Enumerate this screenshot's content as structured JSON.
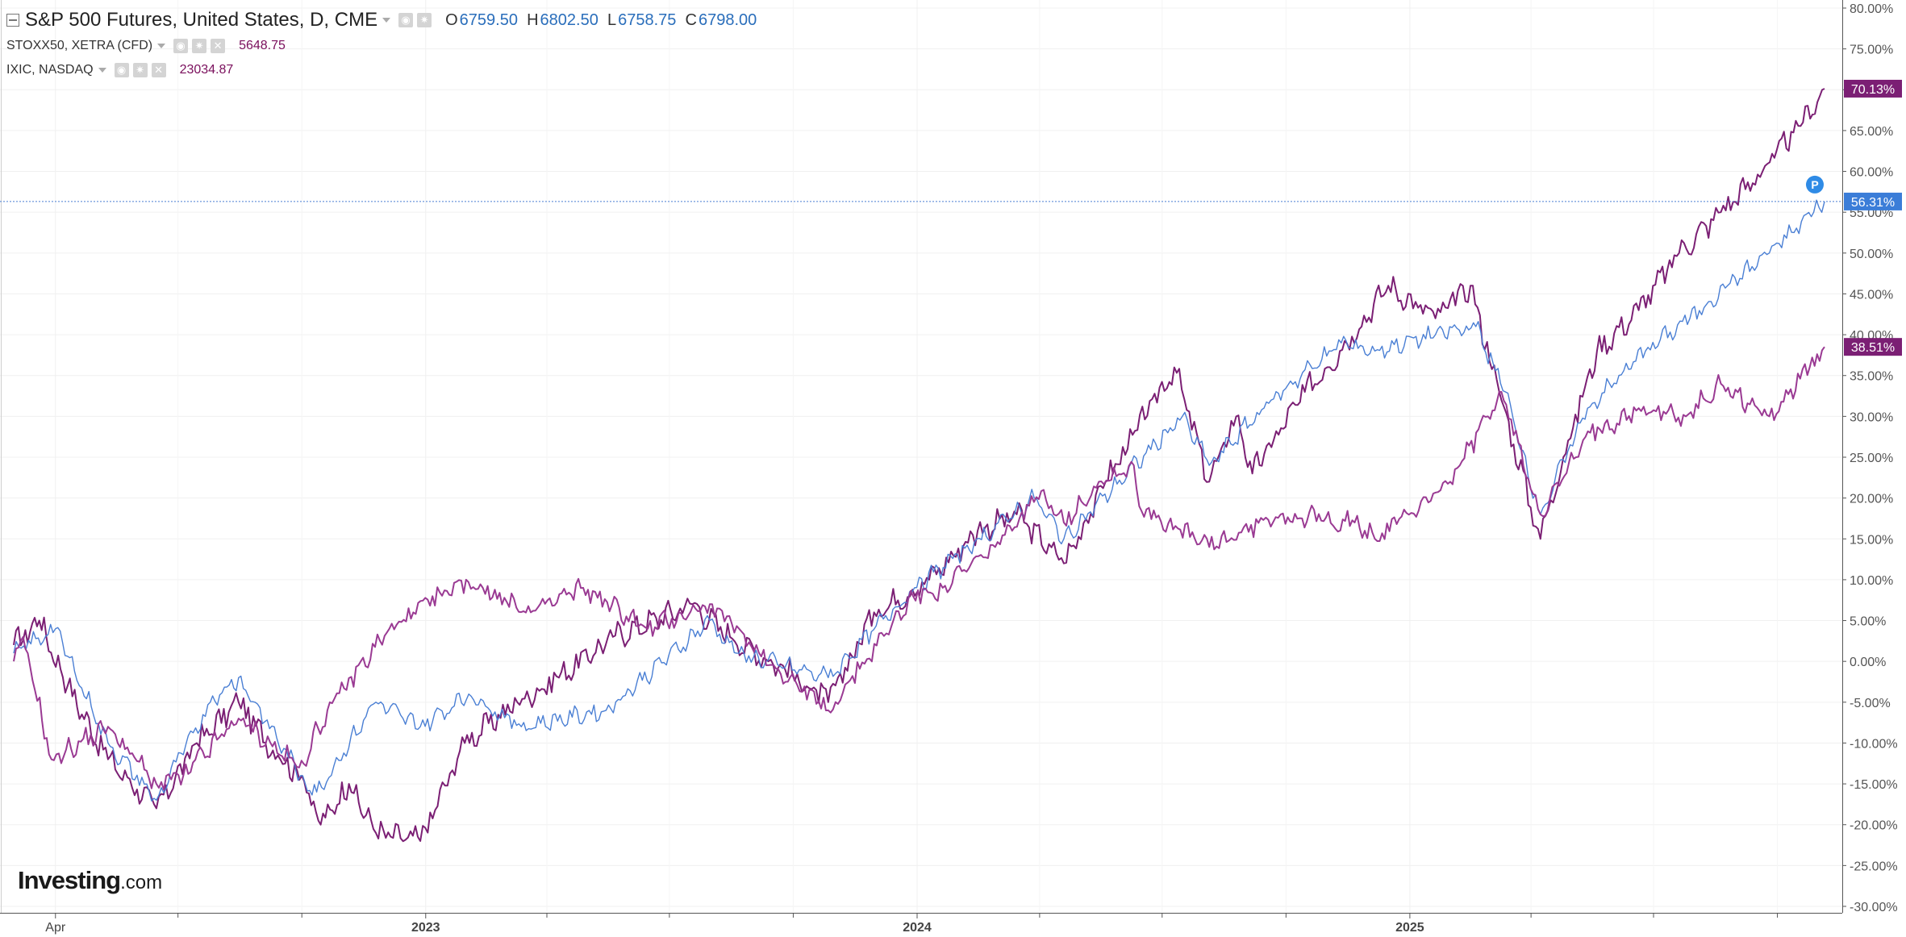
{
  "header": {
    "main": {
      "title": "S&P 500 Futures, United States, D, CME",
      "open_key": "O",
      "open": "6759.50",
      "high_key": "H",
      "high": "6802.50",
      "low_key": "L",
      "low": "6758.75",
      "close_key": "C",
      "close": "6798.00"
    },
    "comparisons": [
      {
        "title": "STOXX50, XETRA (CFD)",
        "last": "5648.75"
      },
      {
        "title": "IXIC, NASDAQ",
        "last": "23034.87"
      }
    ]
  },
  "logo": {
    "name": "Investing",
    "suffix": ".com"
  },
  "price_marker": {
    "label": "P"
  },
  "colors": {
    "sp500": "#4a7fd4",
    "stoxx50": "#9a3a93",
    "ixic": "#7b1f74",
    "axis_text": "#555555",
    "grid": "#f0f0f0"
  },
  "chart_data": {
    "type": "line",
    "x_ticks": [
      "Apr",
      "2023",
      "2024",
      "2025"
    ],
    "ylim": [
      -30,
      80
    ],
    "y_ticks": [
      "80.00%",
      "75.00%",
      "70.00%",
      "65.00%",
      "60.00%",
      "55.00%",
      "50.00%",
      "45.00%",
      "40.00%",
      "35.00%",
      "30.00%",
      "25.00%",
      "20.00%",
      "15.00%",
      "10.00%",
      "5.00%",
      "0.00%",
      "-5.00%",
      "-10.00%",
      "-15.00%",
      "-20.00%",
      "-25.00%",
      "-30.00%"
    ],
    "grid": true,
    "series": [
      {
        "name": "IXIC, NASDAQ",
        "last_label": "70.13%",
        "x": [
          "2022-03-01",
          "2022-03-20",
          "2022-04-10",
          "2022-05-10",
          "2022-06-15",
          "2022-07-15",
          "2022-08-15",
          "2022-09-15",
          "2022-10-01",
          "2022-10-15",
          "2022-11-05",
          "2022-11-25",
          "2022-12-28",
          "2023-01-30",
          "2023-03-10",
          "2023-04-10",
          "2023-05-20",
          "2023-07-18",
          "2023-08-15",
          "2023-09-25",
          "2023-10-27",
          "2023-11-30",
          "2024-01-10",
          "2024-02-15",
          "2024-03-15",
          "2024-04-19",
          "2024-05-20",
          "2024-07-10",
          "2024-08-05",
          "2024-08-25",
          "2024-09-06",
          "2024-10-15",
          "2024-11-10",
          "2024-12-16",
          "2025-01-20",
          "2025-02-15",
          "2025-03-10",
          "2025-04-08",
          "2025-04-25",
          "2025-05-20",
          "2025-06-20",
          "2025-07-20",
          "2025-08-20",
          "2025-09-20",
          "2025-10-20",
          "2025-11-05"
        ],
        "values": [
          2,
          5,
          -3,
          -12,
          -18,
          -10,
          -5,
          -12,
          -14,
          -20,
          -15,
          -21,
          -22,
          -10,
          -5,
          -2,
          3,
          7,
          3,
          -1,
          -5,
          6,
          10,
          16,
          18,
          12,
          22,
          36,
          22,
          30,
          23,
          33,
          38,
          46,
          42,
          46,
          32,
          15,
          25,
          38,
          43,
          50,
          55,
          60,
          66,
          70.13
        ]
      },
      {
        "name": "S&P 500 Futures, United States, D, CME",
        "last_label": "56.31%",
        "x": [
          "2022-03-01",
          "2022-04-01",
          "2022-05-10",
          "2022-06-15",
          "2022-07-25",
          "2022-08-15",
          "2022-09-30",
          "2022-10-12",
          "2022-11-25",
          "2022-12-28",
          "2023-02-02",
          "2023-03-13",
          "2023-05-15",
          "2023-07-31",
          "2023-08-20",
          "2023-10-27",
          "2023-12-30",
          "2024-03-28",
          "2024-04-19",
          "2024-07-16",
          "2024-08-05",
          "2024-09-20",
          "2024-11-11",
          "2024-12-06",
          "2025-01-20",
          "2025-02-19",
          "2025-03-13",
          "2025-04-08",
          "2025-05-13",
          "2025-06-25",
          "2025-07-28",
          "2025-08-25",
          "2025-09-25",
          "2025-10-28",
          "2025-11-05"
        ],
        "values": [
          1,
          4,
          -10,
          -17,
          -5,
          -2,
          -14,
          -16,
          -5,
          -8,
          -4,
          -8,
          -6,
          5,
          1,
          -2,
          9,
          20,
          15,
          30,
          24,
          32,
          39,
          38,
          40,
          41,
          33,
          18,
          31,
          38,
          42,
          46,
          50,
          55,
          56.31
        ]
      },
      {
        "name": "STOXX50, XETRA (CFD)",
        "last_label": "38.51%",
        "x": [
          "2022-03-01",
          "2022-03-08",
          "2022-03-29",
          "2022-05-10",
          "2022-06-15",
          "2022-07-05",
          "2022-08-15",
          "2022-09-29",
          "2022-10-20",
          "2022-12-05",
          "2023-01-31",
          "2023-03-20",
          "2023-04-28",
          "2023-06-15",
          "2023-07-31",
          "2023-09-20",
          "2023-10-27",
          "2023-12-29",
          "2024-01-20",
          "2024-02-28",
          "2024-04-04",
          "2024-04-19",
          "2024-05-15",
          "2024-06-10",
          "2024-06-14",
          "2024-08-05",
          "2024-09-27",
          "2024-11-21",
          "2024-12-06",
          "2025-01-31",
          "2025-02-28",
          "2025-03-10",
          "2025-04-08",
          "2025-05-15",
          "2025-06-20",
          "2025-07-25",
          "2025-08-20",
          "2025-09-25",
          "2025-10-25",
          "2025-11-05"
        ],
        "values": [
          0,
          3,
          -12,
          -8,
          -15,
          -14,
          -7,
          -13,
          -6,
          4,
          10,
          6,
          9,
          4,
          7,
          -1,
          -6,
          8,
          9,
          14,
          21,
          17,
          22,
          24,
          19,
          14,
          18,
          17,
          15,
          22,
          30,
          33,
          18,
          28,
          31,
          30,
          34,
          30,
          36,
          38.51
        ]
      }
    ]
  }
}
